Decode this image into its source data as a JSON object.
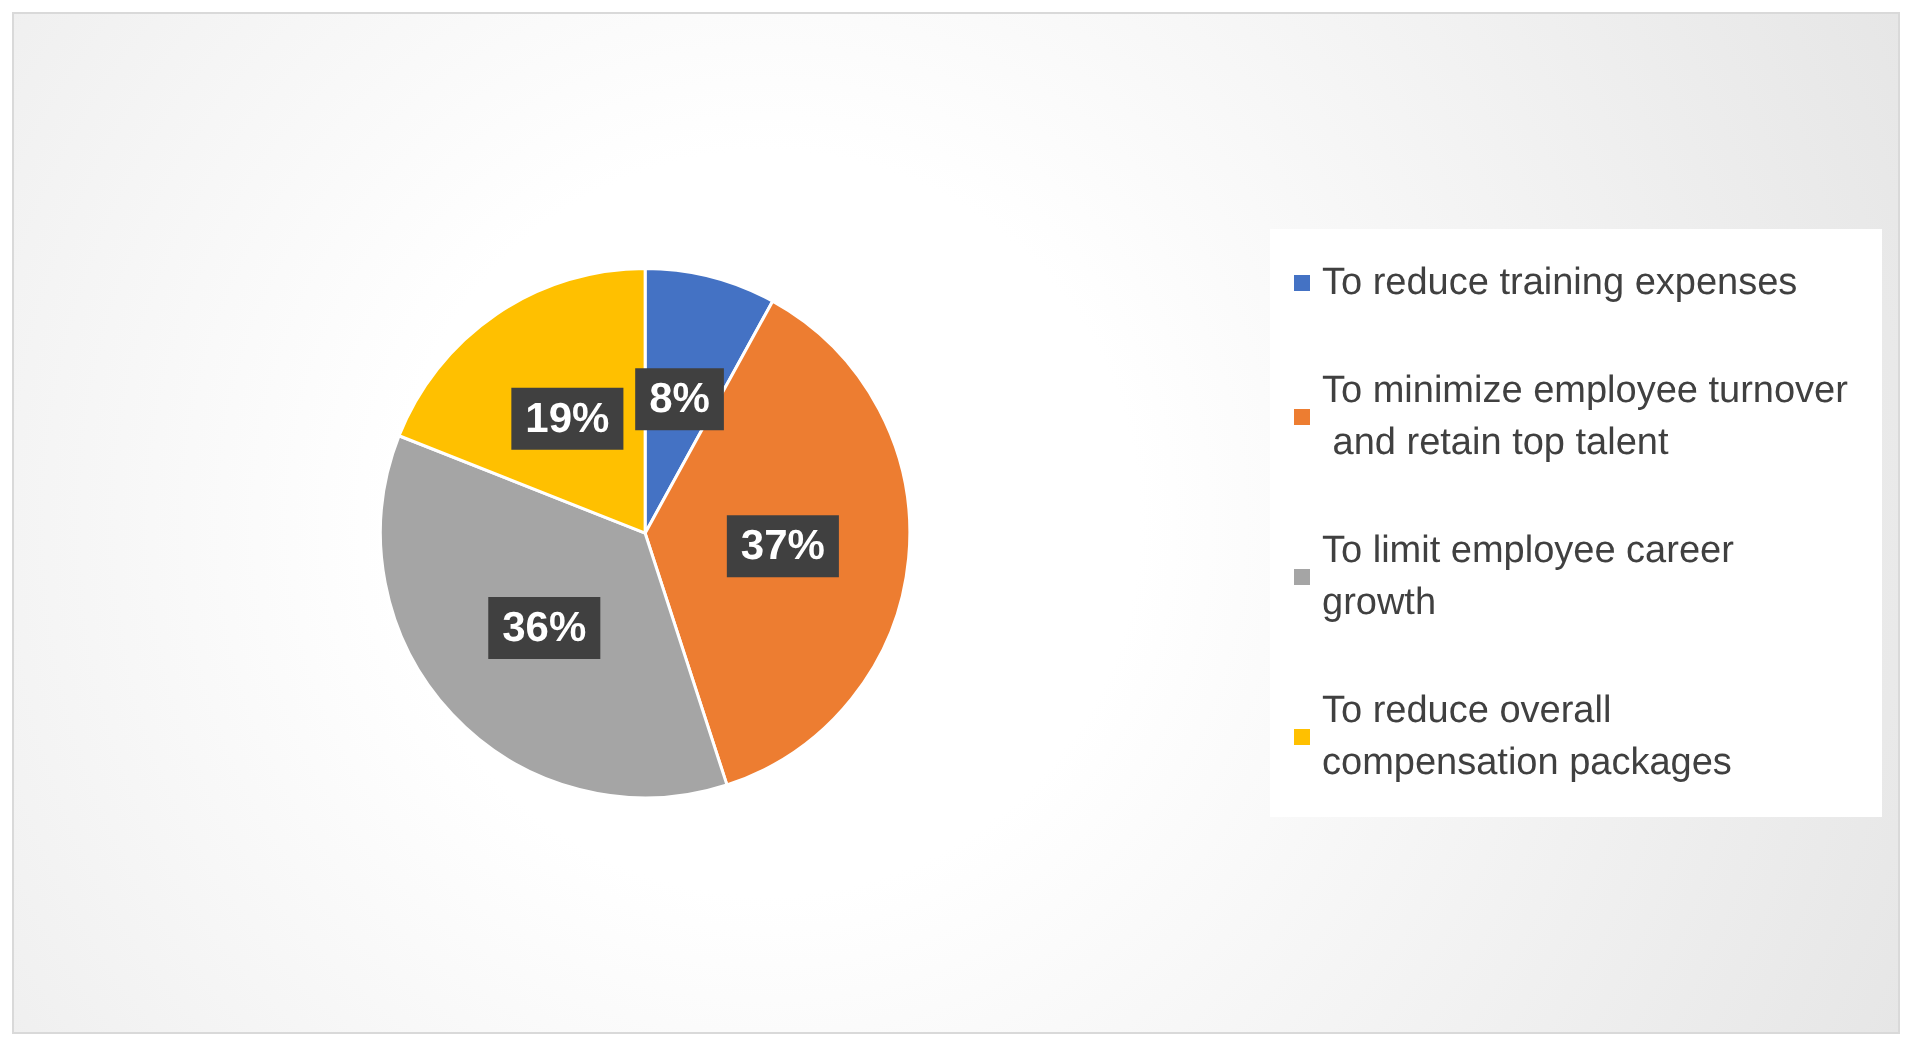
{
  "chart_data": {
    "type": "pie",
    "categories": [
      "To reduce training expenses",
      "To minimize employee turnover and retain top talent",
      "To limit employee career growth",
      "To reduce overall compensation packages"
    ],
    "values": [
      8,
      37,
      36,
      19
    ],
    "colors": [
      "#4472c4",
      "#ed7d31",
      "#a5a5a5",
      "#ffc000"
    ],
    "value_labels": [
      "8%",
      "37%",
      "36%",
      "19%"
    ],
    "legend": "right"
  }
}
